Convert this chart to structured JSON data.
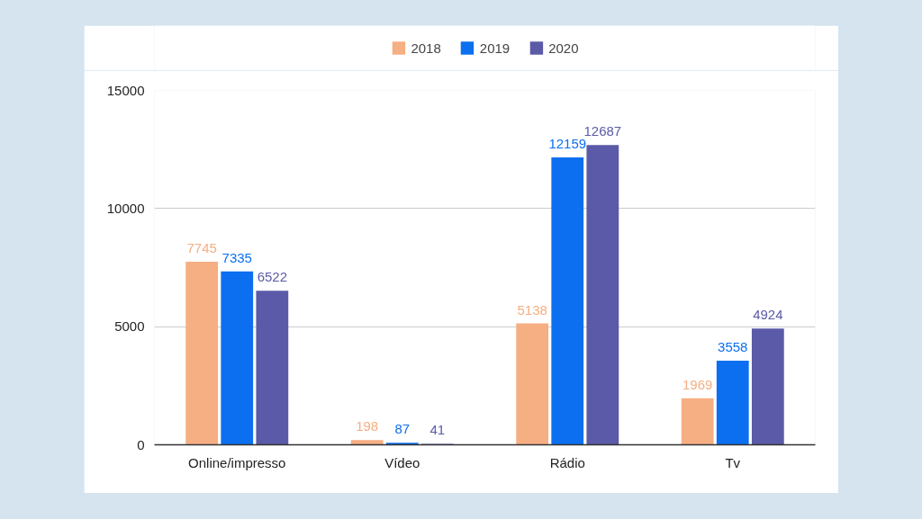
{
  "chart_data": {
    "type": "bar",
    "categories": [
      "Online/impresso",
      "Vídeo",
      "Rádio",
      "Tv"
    ],
    "series": [
      {
        "name": "2018",
        "color": "#f6ae83",
        "values": [
          7745,
          198,
          5138,
          1969
        ]
      },
      {
        "name": "2019",
        "color": "#0b6ff0",
        "values": [
          7335,
          87,
          12159,
          3558
        ]
      },
      {
        "name": "2020",
        "color": "#5a5aa8",
        "values": [
          6522,
          41,
          12687,
          4924
        ]
      }
    ],
    "ylim": [
      0,
      15000
    ],
    "yticks": [
      0,
      5000,
      10000,
      15000
    ],
    "grid": "y",
    "legend": "top",
    "data_labels": true
  }
}
